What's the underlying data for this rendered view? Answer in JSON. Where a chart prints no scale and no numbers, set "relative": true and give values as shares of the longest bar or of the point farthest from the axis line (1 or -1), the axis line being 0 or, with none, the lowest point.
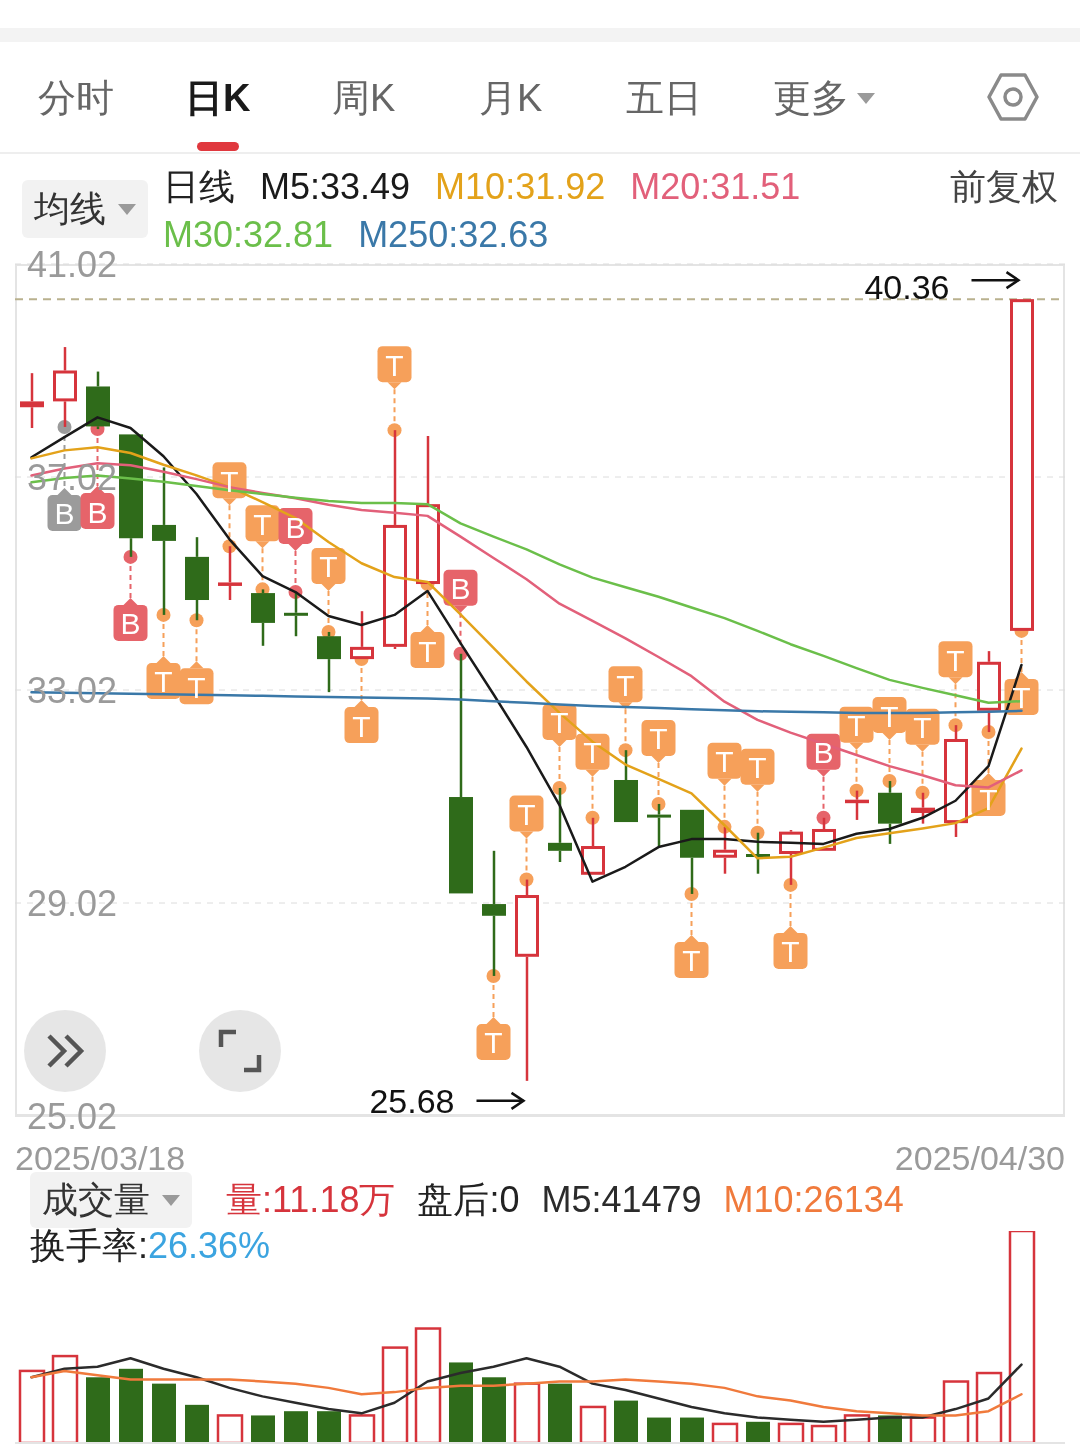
{
  "chart_data": [
    {
      "type": "other",
      "annotations": [
        "分时",
        "日K",
        "周K",
        "月K",
        "五日",
        "更多"
      ]
    },
    {
      "type": "candlestick",
      "title": "均线",
      "legend_title": "日线",
      "legend": "top left",
      "grid": "y",
      "categories": [
        null,
        null,
        null,
        null,
        null,
        null,
        null,
        null,
        null,
        null,
        null,
        null,
        null,
        null,
        null,
        null,
        null,
        null,
        null,
        null,
        null,
        null,
        null,
        null,
        null,
        null,
        null,
        null,
        null,
        null,
        null
      ],
      "ohlc": [
        [
          38.33,
          38.97,
          37.94,
          38.44
        ],
        [
          38.44,
          39.46,
          37.96,
          39.02
        ],
        [
          38.72,
          39.0,
          37.92,
          37.97
        ],
        [
          37.82,
          37.82,
          35.52,
          35.87
        ],
        [
          36.12,
          37.2,
          34.43,
          35.82
        ],
        [
          35.52,
          35.89,
          34.33,
          34.71
        ],
        [
          35.0,
          35.72,
          34.71,
          35.04
        ],
        [
          34.84,
          34.91,
          33.85,
          34.28
        ],
        [
          34.47,
          34.86,
          34.03,
          34.44
        ],
        [
          34.03,
          34.11,
          32.98,
          33.6
        ],
        [
          33.6,
          34.5,
          33.6,
          33.83
        ],
        [
          33.83,
          37.9,
          33.79,
          36.12
        ],
        [
          35.01,
          37.79,
          35.01,
          36.51
        ],
        [
          31.01,
          33.7,
          29.2,
          29.2
        ],
        [
          29.0,
          30.0,
          27.65,
          28.78
        ],
        [
          28.01,
          29.46,
          25.68,
          29.17
        ],
        [
          30.15,
          31.18,
          29.79,
          30.0
        ],
        [
          29.55,
          30.62,
          29.55,
          30.09
        ],
        [
          31.33,
          31.89,
          30.54,
          30.54
        ],
        [
          30.68,
          30.88,
          30.09,
          30.64
        ],
        [
          30.77,
          30.77,
          29.19,
          29.87
        ],
        [
          29.87,
          30.45,
          29.57,
          30.02
        ],
        [
          29.94,
          30.34,
          29.57,
          29.91
        ],
        [
          29.94,
          30.39,
          29.36,
          30.36
        ],
        [
          30.0,
          30.62,
          30.0,
          30.41
        ],
        [
          30.92,
          31.13,
          30.58,
          30.96
        ],
        [
          31.09,
          31.31,
          30.13,
          30.51
        ],
        [
          30.71,
          31.09,
          30.51,
          30.81
        ],
        [
          30.52,
          32.36,
          30.26,
          32.1
        ],
        [
          32.63,
          33.75,
          32.23,
          33.55
        ],
        [
          34.13,
          40.36,
          34.13,
          40.36
        ]
      ],
      "colors": [
        "#d6343c",
        "#d6343c",
        "#2f6b1a",
        "#2f6b1a",
        "#2f6b1a",
        "#2f6b1a",
        "#d6343c",
        "#2f6b1a",
        "#2f6b1a",
        "#2f6b1a",
        "#d6343c",
        "#d6343c",
        "#d6343c",
        "#2f6b1a",
        "#2f6b1a",
        "#d6343c",
        "#2f6b1a",
        "#d6343c",
        "#2f6b1a",
        "#2f6b1a",
        "#2f6b1a",
        "#d6343c",
        "#2f6b1a",
        "#d6343c",
        "#d6343c",
        "#d6343c",
        "#2f6b1a",
        "#d6343c",
        "#d6343c",
        "#d6343c",
        "#d6343c"
      ],
      "ylim": [
        25.02,
        41.02
      ],
      "yticks": [
        25.02,
        29.02,
        33.02,
        37.02,
        41.02
      ],
      "series": [
        {
          "name": "M5:33.49",
          "type": "line",
          "color": "#1a1a1a",
          "values": [
            37.39,
            37.77,
            38.14,
            37.94,
            37.41,
            36.7,
            35.85,
            35.16,
            34.86,
            34.41,
            34.24,
            34.43,
            34.88,
            33.9,
            32.94,
            31.95,
            30.86,
            29.42,
            29.7,
            30.07,
            30.22,
            30.22,
            30.17,
            30.15,
            30.13,
            30.32,
            30.41,
            30.62,
            30.94,
            31.59,
            33.49
          ]
        },
        {
          "name": "M10:31.92",
          "type": "line",
          "color": "#e3a21a",
          "values": [
            37.37,
            37.52,
            37.58,
            37.47,
            37.25,
            37.05,
            36.83,
            36.55,
            36.25,
            35.8,
            35.4,
            35.14,
            35.05,
            34.44,
            33.81,
            33.18,
            32.59,
            32.05,
            31.62,
            31.35,
            31.08,
            30.48,
            29.86,
            29.89,
            30.06,
            30.24,
            30.33,
            30.42,
            30.52,
            30.8,
            31.92
          ]
        },
        {
          "name": "M20:31.51",
          "type": "line",
          "color": "#e2607a",
          "values": [
            37.05,
            37.18,
            37.28,
            37.24,
            37.12,
            36.98,
            36.83,
            36.72,
            36.62,
            36.5,
            36.4,
            36.35,
            36.29,
            35.9,
            35.5,
            35.1,
            34.64,
            34.32,
            33.99,
            33.64,
            33.28,
            32.8,
            32.46,
            32.22,
            32.01,
            31.8,
            31.59,
            31.42,
            31.23,
            31.19,
            31.51
          ]
        },
        {
          "name": "M30:32.81",
          "type": "line",
          "color": "#6bbf4a",
          "values": [
            36.92,
            37.0,
            37.05,
            36.99,
            36.93,
            36.85,
            36.77,
            36.7,
            36.63,
            36.57,
            36.53,
            36.53,
            36.51,
            36.15,
            35.9,
            35.66,
            35.38,
            35.13,
            34.95,
            34.77,
            34.57,
            34.37,
            34.13,
            33.88,
            33.66,
            33.43,
            33.21,
            33.06,
            32.92,
            32.78,
            32.81
          ]
        },
        {
          "name": "M250:32.63",
          "type": "line",
          "color": "#3a78a8",
          "values": [
            32.98,
            32.97,
            32.96,
            32.95,
            32.94,
            32.93,
            32.92,
            32.91,
            32.9,
            32.89,
            32.88,
            32.87,
            32.86,
            32.84,
            32.81,
            32.78,
            32.75,
            32.72,
            32.7,
            32.68,
            32.66,
            32.64,
            32.62,
            32.61,
            32.6,
            32.59,
            32.59,
            32.59,
            32.6,
            32.61,
            32.63
          ]
        },
        {
          "type": "scatter",
          "marker": "circle",
          "values": [
            null,
            37.96,
            37.92,
            35.52,
            34.43,
            34.33,
            35.72,
            34.91,
            34.86,
            34.11,
            33.6,
            37.9,
            35.01,
            33.7,
            27.65,
            29.46,
            31.18,
            30.62,
            31.89,
            30.88,
            29.19,
            30.45,
            30.34,
            29.36,
            30.62,
            31.13,
            31.31,
            31.09,
            32.36,
            32.23,
            34.13
          ],
          "value_labels": [
            null,
            "B",
            "B",
            "B",
            "T",
            "T",
            "T",
            "T",
            "B",
            "T",
            "T",
            "T",
            "T",
            "B",
            "T",
            "T",
            "T",
            "T",
            "T",
            "T",
            "T",
            "T",
            "T",
            "T",
            "B",
            "T",
            "T",
            "T",
            "T",
            "T",
            "T"
          ],
          "colors": [
            null,
            "#9b9b9b",
            "#e6646a",
            "#e6646a",
            "#f6a05a",
            "#f6a05a",
            "#f6a05a",
            "#f6a05a",
            "#e6646a",
            "#f6a05a",
            "#f6a05a",
            "#f6a05a",
            "#f6a05a",
            "#e6646a",
            "#f6a05a",
            "#f6a05a",
            "#f6a05a",
            "#f6a05a",
            "#f6a05a",
            "#f6a05a",
            "#f6a05a",
            "#f6a05a",
            "#f6a05a",
            "#f6a05a",
            "#e6646a",
            "#f6a05a",
            "#f6a05a",
            "#f6a05a",
            "#f6a05a",
            "#f6a05a",
            "#f6a05a"
          ]
        }
      ],
      "ref_lines": [
        {
          "axis": "y",
          "value": 40.36,
          "color": "#b9b18e",
          "line_style": "dashed"
        }
      ],
      "annotations": [
        "前复权",
        "2025/03/18",
        "2025/04/30",
        "25.68",
        {
          "text": "40.36",
          "y": 40.36
        }
      ]
    },
    {
      "type": "bar",
      "title": "成交量",
      "relative": true,
      "legend": "top left",
      "categories": [
        null,
        null,
        null,
        null,
        null,
        null,
        null,
        null,
        null,
        null,
        null,
        null,
        null,
        null,
        null,
        null,
        null,
        null,
        null,
        null,
        null,
        null,
        null,
        null,
        null,
        null,
        null,
        null,
        null,
        null,
        null
      ],
      "series": [
        {
          "name": "量:11.18万",
          "type": "bar",
          "color": "#d6343c",
          "colors": [
            "#d6343c",
            "#d6343c",
            "#2f6b1a",
            "#2f6b1a",
            "#2f6b1a",
            "#2f6b1a",
            "#d6343c",
            "#2f6b1a",
            "#2f6b1a",
            "#2f6b1a",
            "#d6343c",
            "#d6343c",
            "#d6343c",
            "#2f6b1a",
            "#2f6b1a",
            "#d6343c",
            "#2f6b1a",
            "#d6343c",
            "#2f6b1a",
            "#2f6b1a",
            "#2f6b1a",
            "#d6343c",
            "#2f6b1a",
            "#d6343c",
            "#d6343c",
            "#d6343c",
            "#2f6b1a",
            "#d6343c",
            "#d6343c",
            "#d6343c",
            "#d6343c"
          ],
          "values": [
            0.34,
            0.41,
            0.31,
            0.35,
            0.28,
            0.18,
            0.13,
            0.13,
            0.15,
            0.15,
            0.13,
            0.45,
            0.54,
            0.38,
            0.31,
            0.28,
            0.28,
            0.17,
            0.2,
            0.12,
            0.12,
            0.09,
            0.1,
            0.09,
            0.08,
            0.13,
            0.13,
            0.12,
            0.29,
            0.33,
            1
          ]
        },
        {
          "name": "M5:41479",
          "type": "line",
          "color": "#2b2b2b",
          "values": [
            0.31,
            0.35,
            0.36,
            0.4,
            0.35,
            0.31,
            0.26,
            0.22,
            0.19,
            0.16,
            0.14,
            0.19,
            0.29,
            0.33,
            0.36,
            0.4,
            0.36,
            0.28,
            0.25,
            0.21,
            0.17,
            0.14,
            0.12,
            0.11,
            0.1,
            0.11,
            0.12,
            0.12,
            0.16,
            0.21,
            0.37
          ]
        },
        {
          "name": "M10:26134",
          "type": "line",
          "color": "#f07a3c",
          "values": [
            0.31,
            0.34,
            0.32,
            0.3,
            0.3,
            0.3,
            0.3,
            0.29,
            0.28,
            0.26,
            0.23,
            0.24,
            0.26,
            0.27,
            0.27,
            0.28,
            0.29,
            0.29,
            0.3,
            0.29,
            0.28,
            0.26,
            0.22,
            0.2,
            0.17,
            0.15,
            0.14,
            0.13,
            0.13,
            0.15,
            0.23
          ]
        }
      ],
      "annotations": [
        "盘后:0",
        "换手率:26.36%"
      ]
    }
  ]
}
